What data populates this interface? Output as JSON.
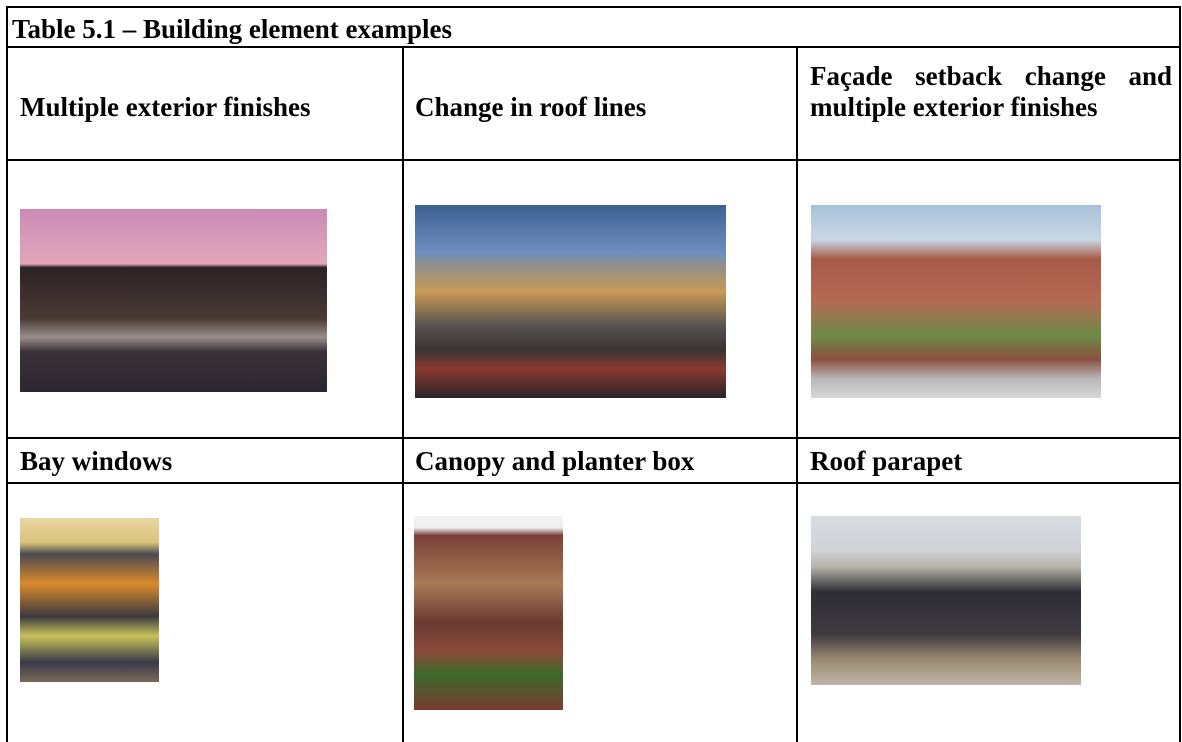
{
  "table": {
    "title": "Table 5.1 – Building element examples",
    "rows": [
      [
        "Multiple exterior finishes",
        "Change in roof lines",
        "Façade setback change and multiple exterior finishes"
      ],
      [
        "Bay windows",
        "Canopy and planter box",
        "Roof parapet"
      ]
    ]
  }
}
